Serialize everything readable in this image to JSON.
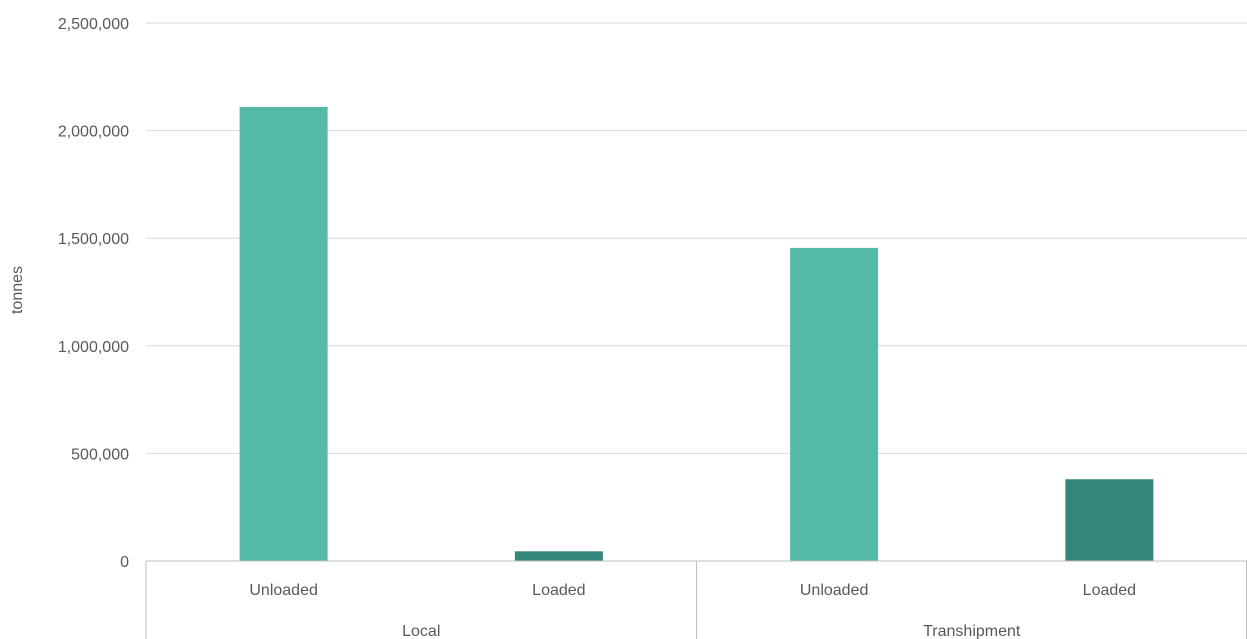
{
  "chart_data": {
    "type": "bar",
    "title": "",
    "ylabel": "tonnes",
    "xlabel": "",
    "ylim": [
      0,
      2500000
    ],
    "y_ticks": [
      0,
      500000,
      1000000,
      1500000,
      2000000,
      2500000
    ],
    "y_tick_labels": [
      "0",
      "500,000",
      "1,000,000",
      "1,500,000",
      "2,000,000",
      "2,500,000"
    ],
    "grid": true,
    "legend": "none",
    "groups": [
      {
        "label": "Local",
        "categories": [
          {
            "label": "Unloaded",
            "value": 2110000,
            "color": "#55b9a8"
          },
          {
            "label": "Loaded",
            "value": 45000,
            "color": "#35857a"
          }
        ]
      },
      {
        "label": "Transhipment",
        "categories": [
          {
            "label": "Unloaded",
            "value": 1455000,
            "color": "#55b9a8"
          },
          {
            "label": "Loaded",
            "value": 380000,
            "color": "#35857a"
          }
        ]
      }
    ]
  }
}
